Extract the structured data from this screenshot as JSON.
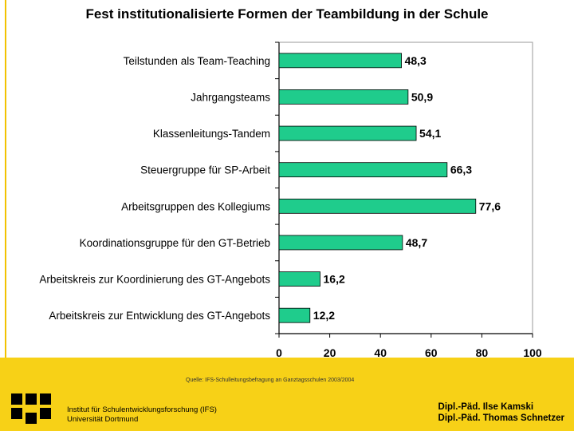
{
  "slide": {
    "title": "Fest institutionalisierte Formen der Teambildung in der Schule",
    "source": "Quelle: IFS-Schulleitungsbefragung an Ganztagsschulen 2003/2004",
    "institute_line1": "Institut für Schulentwicklungsforschung (IFS)",
    "institute_line2": "Universität Dortmund",
    "author_1": "Dipl.-Päd. Ilse Kamski",
    "author_2": "Dipl.-Päd. Thomas Schnetzer"
  },
  "colors": {
    "bar": "#1fcc8c",
    "bar_outline": "#000000",
    "footer": "#f7d117"
  },
  "chart_data": {
    "type": "bar",
    "orientation": "horizontal",
    "title": "Fest institutionalisierte Formen der Teambildung in der Schule",
    "categories": [
      "Teilstunden als Team-Teaching",
      "Jahrgangsteams",
      "Klassenleitungs-Tandem",
      "Steuergruppe für SP-Arbeit",
      "Arbeitsgruppen des Kollegiums",
      "Koordinationsgruppe für den GT-Betrieb",
      "Arbeitskreis zur Koordinierung des GT-Angebots",
      "Arbeitskreis zur Entwicklung des GT-Angebots"
    ],
    "values": [
      48.3,
      50.9,
      54.1,
      66.3,
      77.6,
      48.7,
      16.2,
      12.2
    ],
    "value_labels": [
      "48,3",
      "50,9",
      "54,1",
      "66,3",
      "77,6",
      "48,7",
      "16,2",
      "12,2"
    ],
    "xlim": [
      0,
      100
    ],
    "xticks": [
      0,
      20,
      40,
      60,
      80,
      100
    ],
    "xtick_labels": [
      "0",
      "20",
      "40",
      "60",
      "80",
      "100"
    ],
    "xlabel": "",
    "ylabel": "",
    "grid": false
  }
}
